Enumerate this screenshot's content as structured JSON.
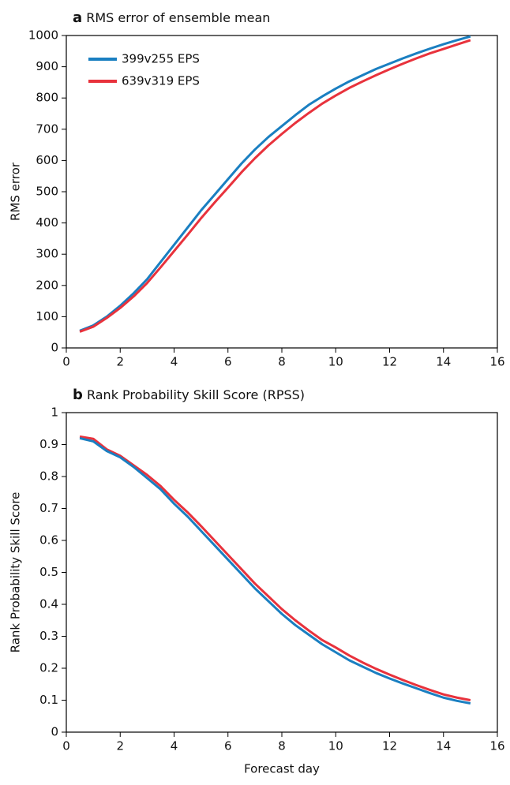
{
  "chart_data": [
    {
      "type": "line",
      "panel_label": "a",
      "title": "RMS error of ensemble mean",
      "y_label": "RMS error",
      "x": [
        0.5,
        1,
        1.5,
        2,
        2.5,
        3,
        3.5,
        4,
        4.5,
        5,
        5.5,
        6,
        6.5,
        7,
        7.5,
        8,
        8.5,
        9,
        9.5,
        10,
        10.5,
        11,
        11.5,
        12,
        12.5,
        13,
        13.5,
        14,
        14.5,
        15
      ],
      "series": [
        {
          "name": "399v255 EPS",
          "color": "#1a7fc1",
          "values": [
            55,
            72,
            100,
            135,
            175,
            220,
            275,
            330,
            385,
            440,
            490,
            540,
            590,
            635,
            675,
            710,
            745,
            778,
            805,
            830,
            853,
            873,
            893,
            910,
            927,
            943,
            958,
            972,
            985,
            997
          ]
        },
        {
          "name": "639v319 EPS",
          "color": "#e8323c",
          "values": [
            52,
            68,
            96,
            128,
            165,
            208,
            258,
            310,
            362,
            415,
            465,
            513,
            562,
            607,
            648,
            685,
            720,
            752,
            782,
            808,
            832,
            853,
            873,
            892,
            910,
            927,
            943,
            957,
            971,
            985
          ]
        }
      ],
      "xlim": [
        0,
        16
      ],
      "xticks": [
        0,
        2,
        4,
        6,
        8,
        10,
        12,
        14,
        16
      ],
      "ylim": [
        0,
        1000
      ],
      "yticks": [
        0,
        100,
        200,
        300,
        400,
        500,
        600,
        700,
        800,
        900,
        1000
      ],
      "legend": "upper left"
    },
    {
      "type": "line",
      "panel_label": "b",
      "title": "Rank Probability Skill Score (RPSS)",
      "y_label": "Rank Probability Skill Score",
      "x_label": "Forecast  day",
      "x": [
        0.5,
        1,
        1.5,
        2,
        2.5,
        3,
        3.5,
        4,
        4.5,
        5,
        5.5,
        6,
        6.5,
        7,
        7.5,
        8,
        8.5,
        9,
        9.5,
        10,
        10.5,
        11,
        11.5,
        12,
        12.5,
        13,
        13.5,
        14,
        14.5,
        15
      ],
      "series": [
        {
          "color": "#e8323c",
          "values": [
            0.925,
            0.918,
            0.885,
            0.865,
            0.835,
            0.805,
            0.77,
            0.727,
            0.688,
            0.645,
            0.6,
            0.555,
            0.51,
            0.465,
            0.425,
            0.385,
            0.35,
            0.318,
            0.288,
            0.265,
            0.24,
            0.218,
            0.198,
            0.18,
            0.163,
            0.147,
            0.132,
            0.118,
            0.108,
            0.1
          ]
        },
        {
          "color": "#1a7fc1",
          "values": [
            0.92,
            0.91,
            0.88,
            0.86,
            0.83,
            0.795,
            0.76,
            0.715,
            0.675,
            0.63,
            0.585,
            0.54,
            0.495,
            0.45,
            0.41,
            0.37,
            0.335,
            0.305,
            0.275,
            0.25,
            0.225,
            0.205,
            0.185,
            0.168,
            0.152,
            0.137,
            0.122,
            0.108,
            0.098,
            0.09
          ]
        }
      ],
      "xlim": [
        0,
        16
      ],
      "xticks": [
        0,
        2,
        4,
        6,
        8,
        10,
        12,
        14,
        16
      ],
      "ylim": [
        0,
        1
      ],
      "yticks": [
        0,
        0.1,
        0.2,
        0.3,
        0.4,
        0.5,
        0.6,
        0.7,
        0.8,
        0.9,
        1
      ]
    }
  ]
}
